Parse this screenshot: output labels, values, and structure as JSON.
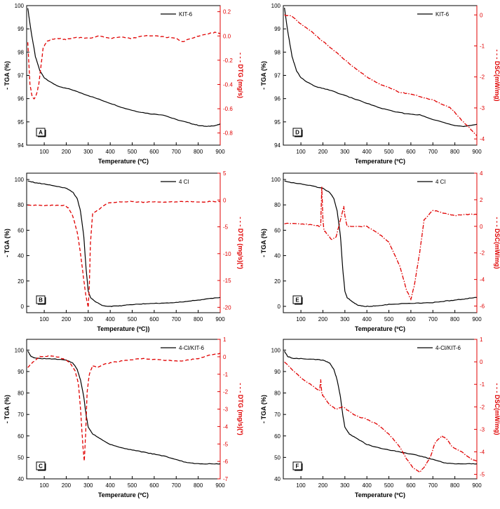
{
  "colors": {
    "tga": "#000000",
    "secondary": "#e00000"
  },
  "chart_data": [
    {
      "type": "line",
      "panel": "A",
      "xlabel": "Temperature (ºC)",
      "ylabel": "- TGA (%)",
      "y2label": "- - - DTG (mg/s)",
      "xlim": [
        20,
        900
      ],
      "xticks": [
        100,
        200,
        300,
        400,
        500,
        600,
        700,
        800,
        900
      ],
      "ylim": [
        94,
        100
      ],
      "yticks": [
        94,
        95,
        96,
        97,
        98,
        99,
        100
      ],
      "y2lim": [
        -0.9,
        0.25
      ],
      "y2ticks": [
        "0.2",
        "0.0",
        "-0.2",
        "-0.4",
        "-0.6",
        "-0.8"
      ],
      "legend": "top-right",
      "series": [
        {
          "name": "KIT-6",
          "axis": "left",
          "style": "solid",
          "x": [
            25,
            40,
            60,
            80,
            100,
            130,
            170,
            220,
            280,
            340,
            400,
            460,
            520,
            580,
            640,
            700,
            760,
            800,
            840,
            880,
            900
          ],
          "y": [
            99.9,
            98.9,
            97.8,
            97.2,
            96.9,
            96.7,
            96.5,
            96.4,
            96.2,
            96.0,
            95.8,
            95.6,
            95.45,
            95.35,
            95.3,
            95.1,
            94.95,
            94.85,
            94.8,
            94.85,
            94.9
          ]
        },
        {
          "axis": "right",
          "style": "dash",
          "x": [
            25,
            35,
            45,
            55,
            65,
            75,
            85,
            95,
            110,
            130,
            160,
            200,
            250,
            300,
            350,
            400,
            450,
            500,
            550,
            600,
            650,
            700,
            730,
            750,
            800,
            850,
            880,
            900
          ],
          "y": [
            -0.05,
            -0.4,
            -0.5,
            -0.52,
            -0.48,
            -0.4,
            -0.25,
            -0.1,
            -0.05,
            -0.03,
            -0.02,
            -0.03,
            -0.01,
            -0.02,
            0.0,
            -0.02,
            -0.01,
            -0.02,
            0.0,
            0.0,
            -0.01,
            -0.02,
            -0.05,
            -0.03,
            0.0,
            0.02,
            0.03,
            0.02
          ]
        }
      ]
    },
    {
      "type": "line",
      "panel": "D",
      "xlabel": "Temperature (ºC)",
      "ylabel": "- TGA (%)",
      "y2label": "- - - DSC(mW/mg)",
      "xlim": [
        20,
        900
      ],
      "xticks": [
        100,
        200,
        300,
        400,
        500,
        600,
        700,
        800,
        900
      ],
      "ylim": [
        94,
        100
      ],
      "yticks": [
        94,
        95,
        96,
        97,
        98,
        99,
        100
      ],
      "y2lim": [
        -4.2,
        0.3
      ],
      "y2ticks": [
        "0",
        "-1",
        "-2",
        "-3",
        "-4"
      ],
      "legend": "top-right",
      "series": [
        {
          "name": "KIT-6",
          "axis": "left",
          "style": "solid",
          "x": [
            25,
            40,
            60,
            80,
            100,
            130,
            170,
            220,
            280,
            340,
            400,
            460,
            520,
            580,
            640,
            700,
            760,
            800,
            840,
            880,
            900
          ],
          "y": [
            99.9,
            98.9,
            97.8,
            97.2,
            96.9,
            96.7,
            96.5,
            96.4,
            96.2,
            96.0,
            95.8,
            95.6,
            95.45,
            95.35,
            95.3,
            95.1,
            94.95,
            94.85,
            94.8,
            94.85,
            94.9
          ]
        },
        {
          "axis": "right",
          "style": "dashdot",
          "x": [
            25,
            60,
            100,
            150,
            200,
            250,
            300,
            350,
            400,
            450,
            500,
            550,
            600,
            650,
            700,
            750,
            780,
            800,
            830,
            860,
            880,
            900
          ],
          "y": [
            0.0,
            -0.05,
            -0.3,
            -0.55,
            -0.85,
            -1.15,
            -1.45,
            -1.75,
            -2.0,
            -2.2,
            -2.35,
            -2.5,
            -2.55,
            -2.65,
            -2.75,
            -2.9,
            -3.0,
            -3.15,
            -3.4,
            -3.6,
            -3.75,
            -3.9
          ]
        }
      ]
    },
    {
      "type": "line",
      "panel": "B",
      "xlabel": "Temperature (ºC))",
      "ylabel": "- TGA (%)",
      "y2label": "- - - DTG (mg/s)(*)",
      "xlim": [
        20,
        900
      ],
      "xticks": [
        100,
        200,
        300,
        400,
        500,
        600,
        700,
        800,
        900
      ],
      "ylim": [
        -5,
        105
      ],
      "yticks": [
        0,
        20,
        40,
        60,
        80,
        100
      ],
      "y2lim": [
        -21,
        5
      ],
      "y2ticks": [
        "5",
        "0",
        "-5",
        "-10",
        "-15",
        "-20"
      ],
      "legend": "top-right",
      "series": [
        {
          "name": "4 Cl",
          "axis": "left",
          "style": "solid",
          "x": [
            25,
            60,
            100,
            150,
            200,
            230,
            250,
            265,
            280,
            290,
            300,
            310,
            330,
            360,
            390,
            410,
            450,
            500,
            550,
            600,
            650,
            700,
            750,
            800,
            850,
            900
          ],
          "y": [
            99,
            97.5,
            96.5,
            95,
            93,
            90,
            85,
            75,
            55,
            30,
            12,
            7,
            4,
            1,
            0,
            0,
            0.5,
            1.5,
            2,
            2.5,
            2.5,
            3,
            4,
            5,
            6,
            7
          ]
        },
        {
          "axis": "right",
          "style": "dash",
          "x": [
            25,
            60,
            100,
            150,
            190,
            210,
            230,
            250,
            265,
            280,
            290,
            300,
            305,
            310,
            320,
            340,
            370,
            400,
            450,
            500,
            550,
            600,
            650,
            700,
            750,
            800,
            850,
            900
          ],
          "y": [
            -1,
            -1,
            -1,
            -1,
            -1,
            -1.5,
            -3,
            -6,
            -10,
            -15,
            -18,
            -20,
            -16,
            -8,
            -2.5,
            -2,
            -1,
            -0.5,
            -0.3,
            -0.3,
            -0.4,
            -0.3,
            -0.4,
            -0.3,
            -0.3,
            -0.4,
            -0.3,
            -0.3
          ]
        }
      ]
    },
    {
      "type": "line",
      "panel": "E",
      "xlabel": "Temperature (ºC)",
      "ylabel": "- TGA (%)",
      "y2label": "- - - DSC(mW/mg)",
      "xlim": [
        20,
        900
      ],
      "xticks": [
        100,
        200,
        300,
        400,
        500,
        600,
        700,
        800,
        900
      ],
      "ylim": [
        -5,
        105
      ],
      "yticks": [
        0,
        20,
        40,
        60,
        80,
        100
      ],
      "y2lim": [
        -6.5,
        4
      ],
      "y2ticks": [
        "4",
        "2",
        "0",
        "-2",
        "-4",
        "-6"
      ],
      "legend": "top-right",
      "series": [
        {
          "name": "4 Cl",
          "axis": "left",
          "style": "solid",
          "x": [
            25,
            60,
            100,
            150,
            200,
            230,
            250,
            265,
            280,
            290,
            300,
            310,
            330,
            360,
            390,
            410,
            450,
            500,
            550,
            600,
            650,
            700,
            750,
            800,
            850,
            900
          ],
          "y": [
            99,
            97.5,
            96.5,
            95,
            93,
            90,
            85,
            75,
            55,
            30,
            12,
            7,
            4,
            1,
            0,
            0,
            0.5,
            1.5,
            2,
            2.5,
            2.5,
            3,
            4,
            5,
            6,
            7
          ]
        },
        {
          "axis": "right",
          "style": "dashdot",
          "x": [
            25,
            100,
            150,
            190,
            195,
            200,
            205,
            215,
            240,
            260,
            280,
            295,
            300,
            310,
            330,
            400,
            450,
            500,
            550,
            580,
            600,
            615,
            640,
            660,
            700,
            750,
            800,
            850,
            900
          ],
          "y": [
            0.2,
            0.2,
            0.1,
            0.0,
            3.0,
            0.5,
            -0.3,
            -0.5,
            -1.0,
            -0.8,
            0.5,
            1.5,
            0.8,
            0.0,
            0.0,
            0.0,
            -0.5,
            -1.2,
            -3.0,
            -4.8,
            -5.5,
            -4.5,
            -2.0,
            0.5,
            1.2,
            1.0,
            0.8,
            0.9,
            0.9
          ]
        }
      ]
    },
    {
      "type": "line",
      "panel": "C",
      "xlabel": "Temperature (ºC)",
      "ylabel": "- TGA (%)",
      "y2label": "- - - DTG (mg/s)(*)",
      "xlim": [
        20,
        900
      ],
      "xticks": [
        100,
        200,
        300,
        400,
        500,
        600,
        700,
        800,
        900
      ],
      "ylim": [
        40,
        105
      ],
      "yticks": [
        40,
        50,
        60,
        70,
        80,
        90,
        100
      ],
      "y2lim": [
        -7,
        1
      ],
      "y2ticks": [
        "1",
        "0",
        "-1",
        "-2",
        "-3",
        "-4",
        "-5",
        "-6",
        "-7"
      ],
      "legend": "top-right",
      "series": [
        {
          "name": "4-Cl/KIT-6",
          "axis": "left",
          "style": "solid",
          "x": [
            25,
            40,
            60,
            100,
            150,
            200,
            230,
            250,
            265,
            280,
            290,
            300,
            320,
            350,
            400,
            450,
            500,
            550,
            600,
            650,
            700,
            750,
            800,
            850,
            900
          ],
          "y": [
            99.5,
            97,
            96.2,
            96,
            95.8,
            95.3,
            94,
            91,
            86,
            78,
            70,
            64,
            61,
            59,
            56,
            54.5,
            53.5,
            52.5,
            51.5,
            50.5,
            49,
            47.5,
            47,
            47,
            47
          ]
        },
        {
          "axis": "right",
          "style": "dash",
          "x": [
            25,
            50,
            80,
            120,
            160,
            200,
            220,
            240,
            255,
            265,
            275,
            282,
            288,
            295,
            305,
            320,
            340,
            380,
            420,
            480,
            550,
            600,
            650,
            700,
            750,
            800,
            850,
            900
          ],
          "y": [
            -0.6,
            -0.3,
            0.0,
            0.05,
            0.0,
            -0.2,
            -0.4,
            -0.8,
            -1.5,
            -3.0,
            -5.0,
            -6.0,
            -4.5,
            -2.0,
            -1.0,
            -0.5,
            -0.6,
            -0.4,
            -0.3,
            -0.2,
            -0.1,
            -0.15,
            -0.2,
            -0.25,
            -0.2,
            -0.1,
            0.1,
            0.2
          ]
        }
      ]
    },
    {
      "type": "line",
      "panel": "F",
      "xlabel": "Temperature (ºC)",
      "ylabel": "- TGA (%)",
      "y2label": "- - - DSC(mW/mg)",
      "xlim": [
        20,
        900
      ],
      "xticks": [
        100,
        200,
        300,
        400,
        500,
        600,
        700,
        800,
        900
      ],
      "ylim": [
        40,
        105
      ],
      "yticks": [
        40,
        50,
        60,
        70,
        80,
        90,
        100
      ],
      "y2lim": [
        -5.2,
        1
      ],
      "y2ticks": [
        "1",
        "0",
        "-1",
        "-2",
        "-3",
        "-4",
        "-5"
      ],
      "legend": "top-right",
      "series": [
        {
          "name": "4-Cl/KIT-6",
          "axis": "left",
          "style": "solid",
          "x": [
            25,
            40,
            60,
            100,
            150,
            200,
            230,
            250,
            265,
            280,
            290,
            300,
            320,
            350,
            400,
            450,
            500,
            550,
            600,
            650,
            700,
            750,
            800,
            850,
            900
          ],
          "y": [
            99.5,
            97,
            96.2,
            96,
            95.8,
            95.3,
            94,
            91,
            86,
            78,
            70,
            64,
            61,
            59,
            56,
            54.5,
            53.5,
            52.5,
            51.5,
            50.5,
            49,
            47.5,
            47,
            47,
            47
          ]
        },
        {
          "axis": "right",
          "style": "dashdot",
          "x": [
            25,
            60,
            100,
            150,
            185,
            190,
            195,
            200,
            230,
            260,
            290,
            320,
            350,
            400,
            450,
            500,
            550,
            580,
            610,
            640,
            660,
            690,
            710,
            740,
            760,
            790,
            830,
            870,
            900
          ],
          "y": [
            0.0,
            -0.35,
            -0.7,
            -1.05,
            -1.3,
            -0.8,
            -1.4,
            -1.5,
            -1.9,
            -2.1,
            -2.0,
            -2.2,
            -2.4,
            -2.55,
            -2.8,
            -3.2,
            -3.8,
            -4.3,
            -4.7,
            -4.9,
            -4.7,
            -4.2,
            -3.6,
            -3.3,
            -3.4,
            -3.8,
            -4.0,
            -4.3,
            -4.4
          ]
        }
      ]
    }
  ]
}
